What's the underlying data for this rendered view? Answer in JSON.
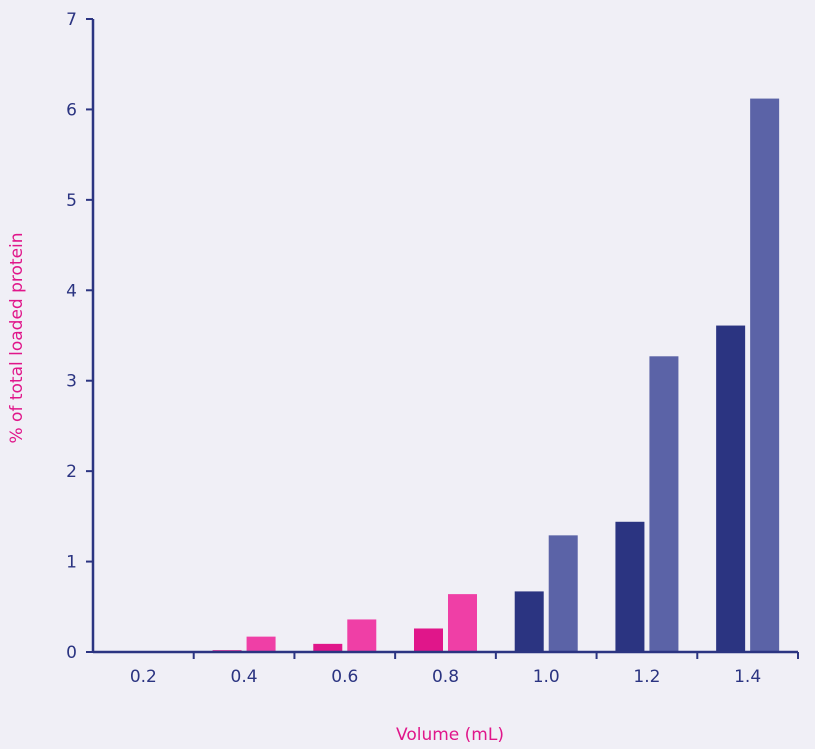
{
  "chart_data": {
    "type": "bar",
    "title": "",
    "xlabel": "Volume (mL)",
    "ylabel": "% of total loaded protein",
    "categories": [
      "0.2",
      "0.4",
      "0.6",
      "0.8",
      "1.0",
      "1.2",
      "1.4"
    ],
    "ylim": [
      0,
      7
    ],
    "yticks": [
      "0",
      "1",
      "2",
      "3",
      "4",
      "5",
      "6",
      "7"
    ],
    "grid": false,
    "legend": "none",
    "series": [
      {
        "values": [
          0,
          0.02,
          0.09,
          0.26,
          0.67,
          1.44,
          3.61
        ]
      },
      {
        "values": [
          0,
          0.17,
          0.36,
          0.64,
          1.29,
          3.27,
          6.12
        ]
      }
    ],
    "bar_colors": [
      [
        "#e0168a",
        "#e0168a",
        "#e0168a",
        "#e0168a",
        "#2b3481",
        "#2b3481",
        "#2b3481"
      ],
      [
        "#ef3fa6",
        "#ef3fa6",
        "#ef3fa6",
        "#ef3fa6",
        "#5b63a7",
        "#5b63a7",
        "#5b63a7"
      ]
    ],
    "axis_color": "#2b3481",
    "label_color": "#e0168a"
  }
}
